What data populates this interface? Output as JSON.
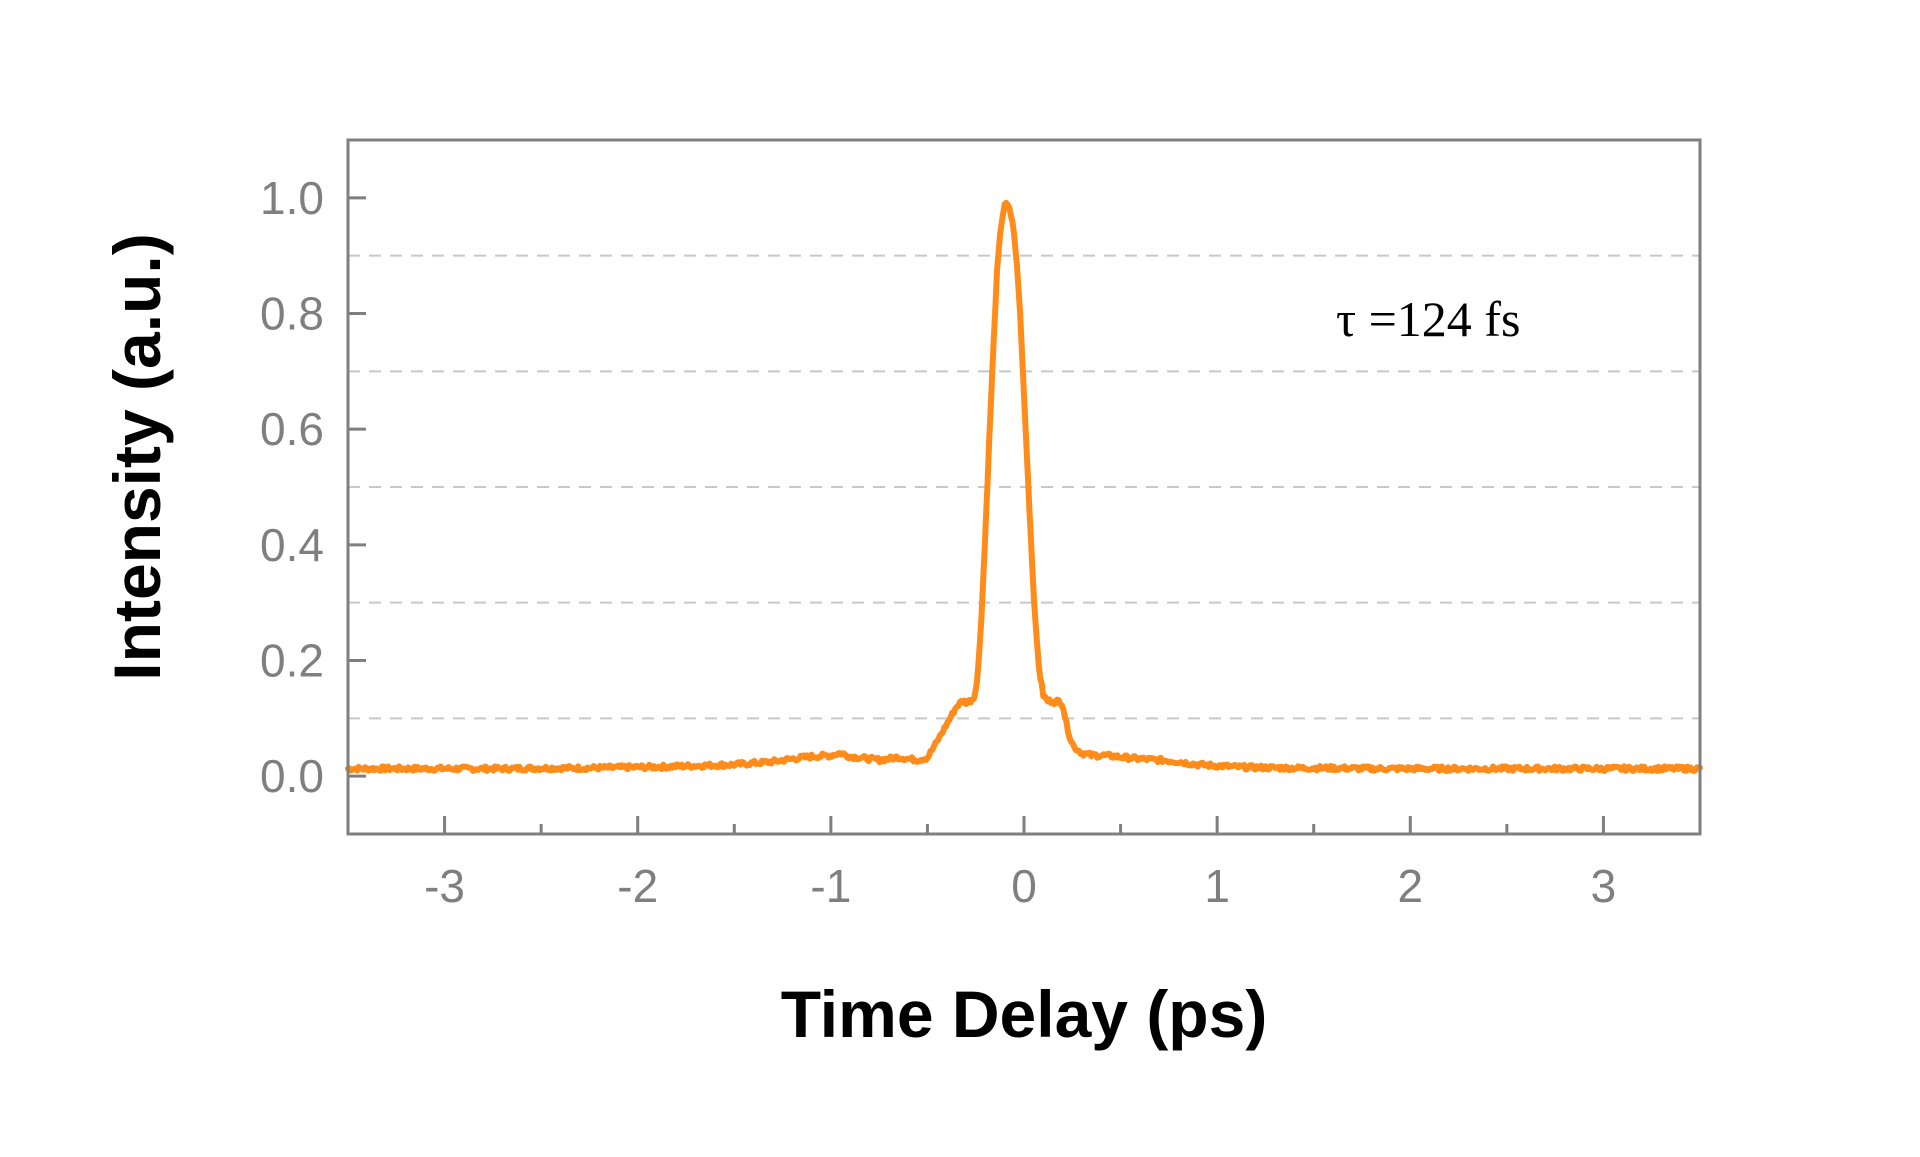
{
  "chart_data": {
    "type": "line",
    "xlabel": "Time Delay (ps)",
    "ylabel": "Intensity (a.u.)",
    "xlim": [
      -3.5,
      3.5
    ],
    "ylim": [
      -0.1,
      1.1
    ],
    "x_ticks": [
      -3,
      -2,
      -1,
      0,
      1,
      2,
      3
    ],
    "x_tick_labels": [
      "-3",
      "-2",
      "-1",
      "0",
      "1",
      "2",
      "3"
    ],
    "x_minor_ticks": [
      -3.5,
      -2.5,
      -1.5,
      -0.5,
      0.5,
      1.5,
      2.5,
      3.5
    ],
    "y_ticks": [
      0.0,
      0.2,
      0.4,
      0.6,
      0.8,
      1.0
    ],
    "y_tick_labels": [
      "0.0",
      "0.2",
      "0.4",
      "0.6",
      "0.8",
      "1.0"
    ],
    "grid": {
      "horizontal": true,
      "vertical": false,
      "style": "dashed",
      "y_values": [
        0.1,
        0.3,
        0.5,
        0.7,
        0.9
      ]
    },
    "annotation": "τ =124 fs",
    "series": [
      {
        "color": "#ff8c1a",
        "x": [
          -3.5,
          -3.3,
          -3.1,
          -2.9,
          -2.7,
          -2.5,
          -2.3,
          -2.1,
          -1.9,
          -1.7,
          -1.5,
          -1.3,
          -1.2,
          -1.1,
          -1.0,
          -0.95,
          -0.9,
          -0.85,
          -0.8,
          -0.75,
          -0.7,
          -0.65,
          -0.6,
          -0.55,
          -0.5,
          -0.45,
          -0.4,
          -0.35,
          -0.32,
          -0.3,
          -0.28,
          -0.26,
          -0.24,
          -0.22,
          -0.2,
          -0.18,
          -0.16,
          -0.14,
          -0.12,
          -0.1,
          -0.08,
          -0.06,
          -0.04,
          -0.02,
          0.0,
          0.02,
          0.04,
          0.06,
          0.08,
          0.1,
          0.12,
          0.14,
          0.16,
          0.18,
          0.2,
          0.22,
          0.24,
          0.26,
          0.28,
          0.3,
          0.35,
          0.4,
          0.45,
          0.5,
          0.6,
          0.7,
          0.8,
          0.9,
          1.0,
          1.1,
          1.2,
          1.4,
          1.6,
          1.8,
          2.0,
          2.2,
          2.4,
          2.6,
          2.8,
          3.0,
          3.2,
          3.4,
          3.5
        ],
        "y": [
          0.013,
          0.013,
          0.013,
          0.013,
          0.013,
          0.014,
          0.014,
          0.015,
          0.016,
          0.018,
          0.02,
          0.025,
          0.03,
          0.034,
          0.036,
          0.04,
          0.034,
          0.032,
          0.03,
          0.028,
          0.03,
          0.033,
          0.03,
          0.028,
          0.032,
          0.06,
          0.09,
          0.12,
          0.13,
          0.128,
          0.13,
          0.135,
          0.17,
          0.28,
          0.42,
          0.58,
          0.73,
          0.87,
          0.95,
          0.99,
          0.985,
          0.96,
          0.9,
          0.8,
          0.66,
          0.52,
          0.38,
          0.26,
          0.18,
          0.14,
          0.13,
          0.13,
          0.128,
          0.13,
          0.125,
          0.09,
          0.065,
          0.05,
          0.045,
          0.04,
          0.036,
          0.036,
          0.035,
          0.033,
          0.03,
          0.028,
          0.025,
          0.02,
          0.018,
          0.016,
          0.015,
          0.014,
          0.014,
          0.013,
          0.013,
          0.013,
          0.013,
          0.013,
          0.013,
          0.013,
          0.013,
          0.013,
          0.013
        ]
      }
    ]
  }
}
